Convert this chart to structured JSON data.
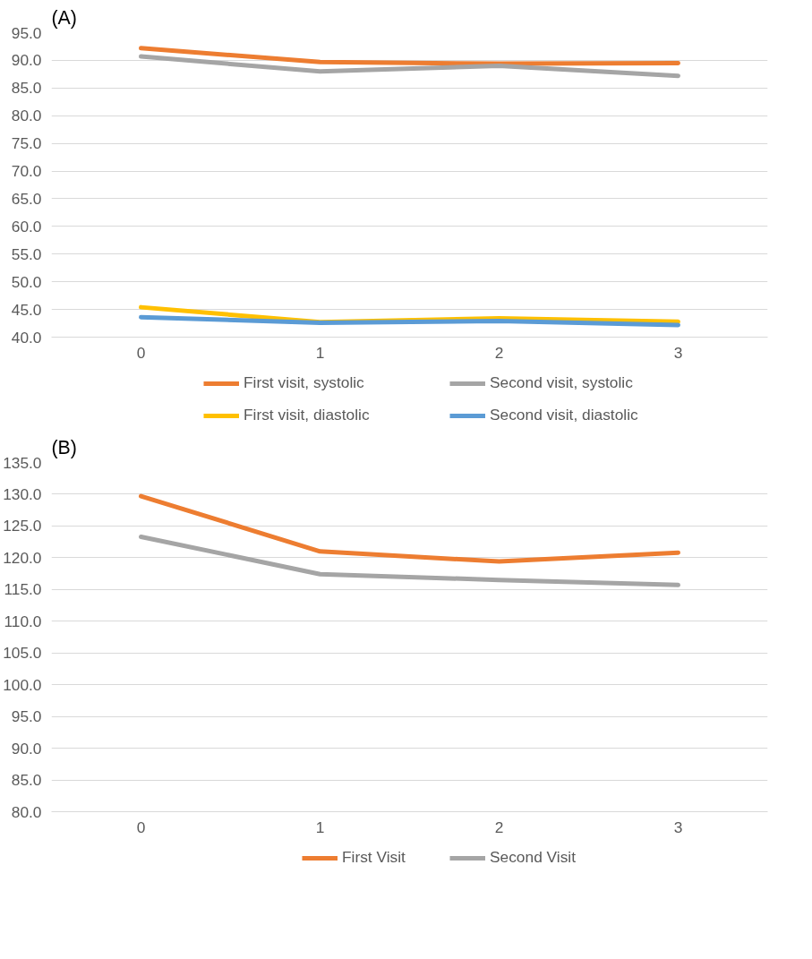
{
  "chart_data": [
    {
      "type": "line",
      "title": "(A)",
      "categories": [
        "0",
        "1",
        "2",
        "3"
      ],
      "ylim": [
        40,
        95
      ],
      "yticks": [
        {
          "value": 40,
          "label": "40.0"
        },
        {
          "value": 45,
          "label": "45.0"
        },
        {
          "value": 50,
          "label": "50.0"
        },
        {
          "value": 55,
          "label": "55.0"
        },
        {
          "value": 60,
          "label": "60.0"
        },
        {
          "value": 65,
          "label": "65.0"
        },
        {
          "value": 70,
          "label": "70.0"
        },
        {
          "value": 75,
          "label": "75.0"
        },
        {
          "value": 80,
          "label": "80.0"
        },
        {
          "value": 85,
          "label": "85.0"
        },
        {
          "value": 90,
          "label": "90.0"
        },
        {
          "value": 95,
          "label": "95.0"
        }
      ],
      "grid": "y",
      "legend": "bottom",
      "series": [
        {
          "name": "First visit, systolic",
          "color": "#ed7d31",
          "values": [
            92.2,
            89.7,
            89.4,
            89.5
          ]
        },
        {
          "name": "Second visit, systolic",
          "color": "#a5a5a5",
          "values": [
            90.7,
            88.0,
            89.0,
            87.2
          ]
        },
        {
          "name": "First visit, diastolic",
          "color": "#ffc000",
          "values": [
            45.4,
            42.7,
            43.4,
            42.8
          ]
        },
        {
          "name": "Second visit, diastolic",
          "color": "#5b9bd5",
          "values": [
            43.6,
            42.6,
            42.9,
            42.2
          ]
        }
      ]
    },
    {
      "type": "line",
      "title": "(B)",
      "categories": [
        "0",
        "1",
        "2",
        "3"
      ],
      "ylim": [
        80,
        135
      ],
      "yticks": [
        {
          "value": 80,
          "label": "80.0"
        },
        {
          "value": 85,
          "label": "85.0"
        },
        {
          "value": 90,
          "label": "90.0"
        },
        {
          "value": 95,
          "label": "95.0"
        },
        {
          "value": 100,
          "label": "100.0"
        },
        {
          "value": 105,
          "label": "105.0"
        },
        {
          "value": 110,
          "label": "110.0"
        },
        {
          "value": 115,
          "label": "115.0"
        },
        {
          "value": 120,
          "label": "120.0"
        },
        {
          "value": 125,
          "label": "125.0"
        },
        {
          "value": 130,
          "label": "130.0"
        },
        {
          "value": 135,
          "label": "135.0"
        }
      ],
      "grid": "y",
      "legend": "bottom",
      "series": [
        {
          "name": "First Visit",
          "color": "#ed7d31",
          "values": [
            129.7,
            121.0,
            119.4,
            120.8
          ]
        },
        {
          "name": "Second Visit",
          "color": "#a5a5a5",
          "values": [
            123.3,
            117.4,
            116.5,
            115.7
          ]
        }
      ]
    }
  ]
}
